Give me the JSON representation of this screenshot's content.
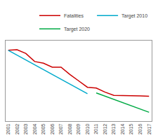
{
  "chart_data": {
    "type": "line",
    "x": [
      2001,
      2002,
      2003,
      2004,
      2005,
      2006,
      2007,
      2008,
      2009,
      2010,
      2011,
      2012,
      2013,
      2014,
      2015,
      2016,
      2017
    ],
    "series": [
      {
        "name": "Fatalities",
        "color": "#cc0000",
        "values": [
          54000,
          54300,
          52000,
          47000,
          46000,
          43500,
          43500,
          39000,
          35000,
          31000,
          30500,
          28000,
          26000,
          26000,
          26000,
          25700,
          25400
        ]
      },
      {
        "name": "Target 2010",
        "color": "#00aacc",
        "values": [
          54000,
          51000,
          48000,
          45000,
          42000,
          39000,
          36000,
          33000,
          30000,
          27000,
          null,
          null,
          null,
          null,
          null,
          null,
          null
        ]
      },
      {
        "name": "Target 2020",
        "color": "#00aa44",
        "values": [
          null,
          null,
          null,
          null,
          null,
          null,
          null,
          null,
          null,
          null,
          27500,
          25500,
          23500,
          21500,
          19500,
          17500,
          15500
        ]
      }
    ],
    "xlim": [
      2000.7,
      2017.3
    ],
    "xticks": [
      2001,
      2002,
      2003,
      2004,
      2005,
      2006,
      2007,
      2008,
      2009,
      2010,
      2011,
      2012,
      2013,
      2014,
      2015,
      2016,
      2017
    ],
    "ylim": [
      10000,
      60000
    ],
    "tick_labels": "x",
    "grid": false,
    "legend": "upper right"
  }
}
